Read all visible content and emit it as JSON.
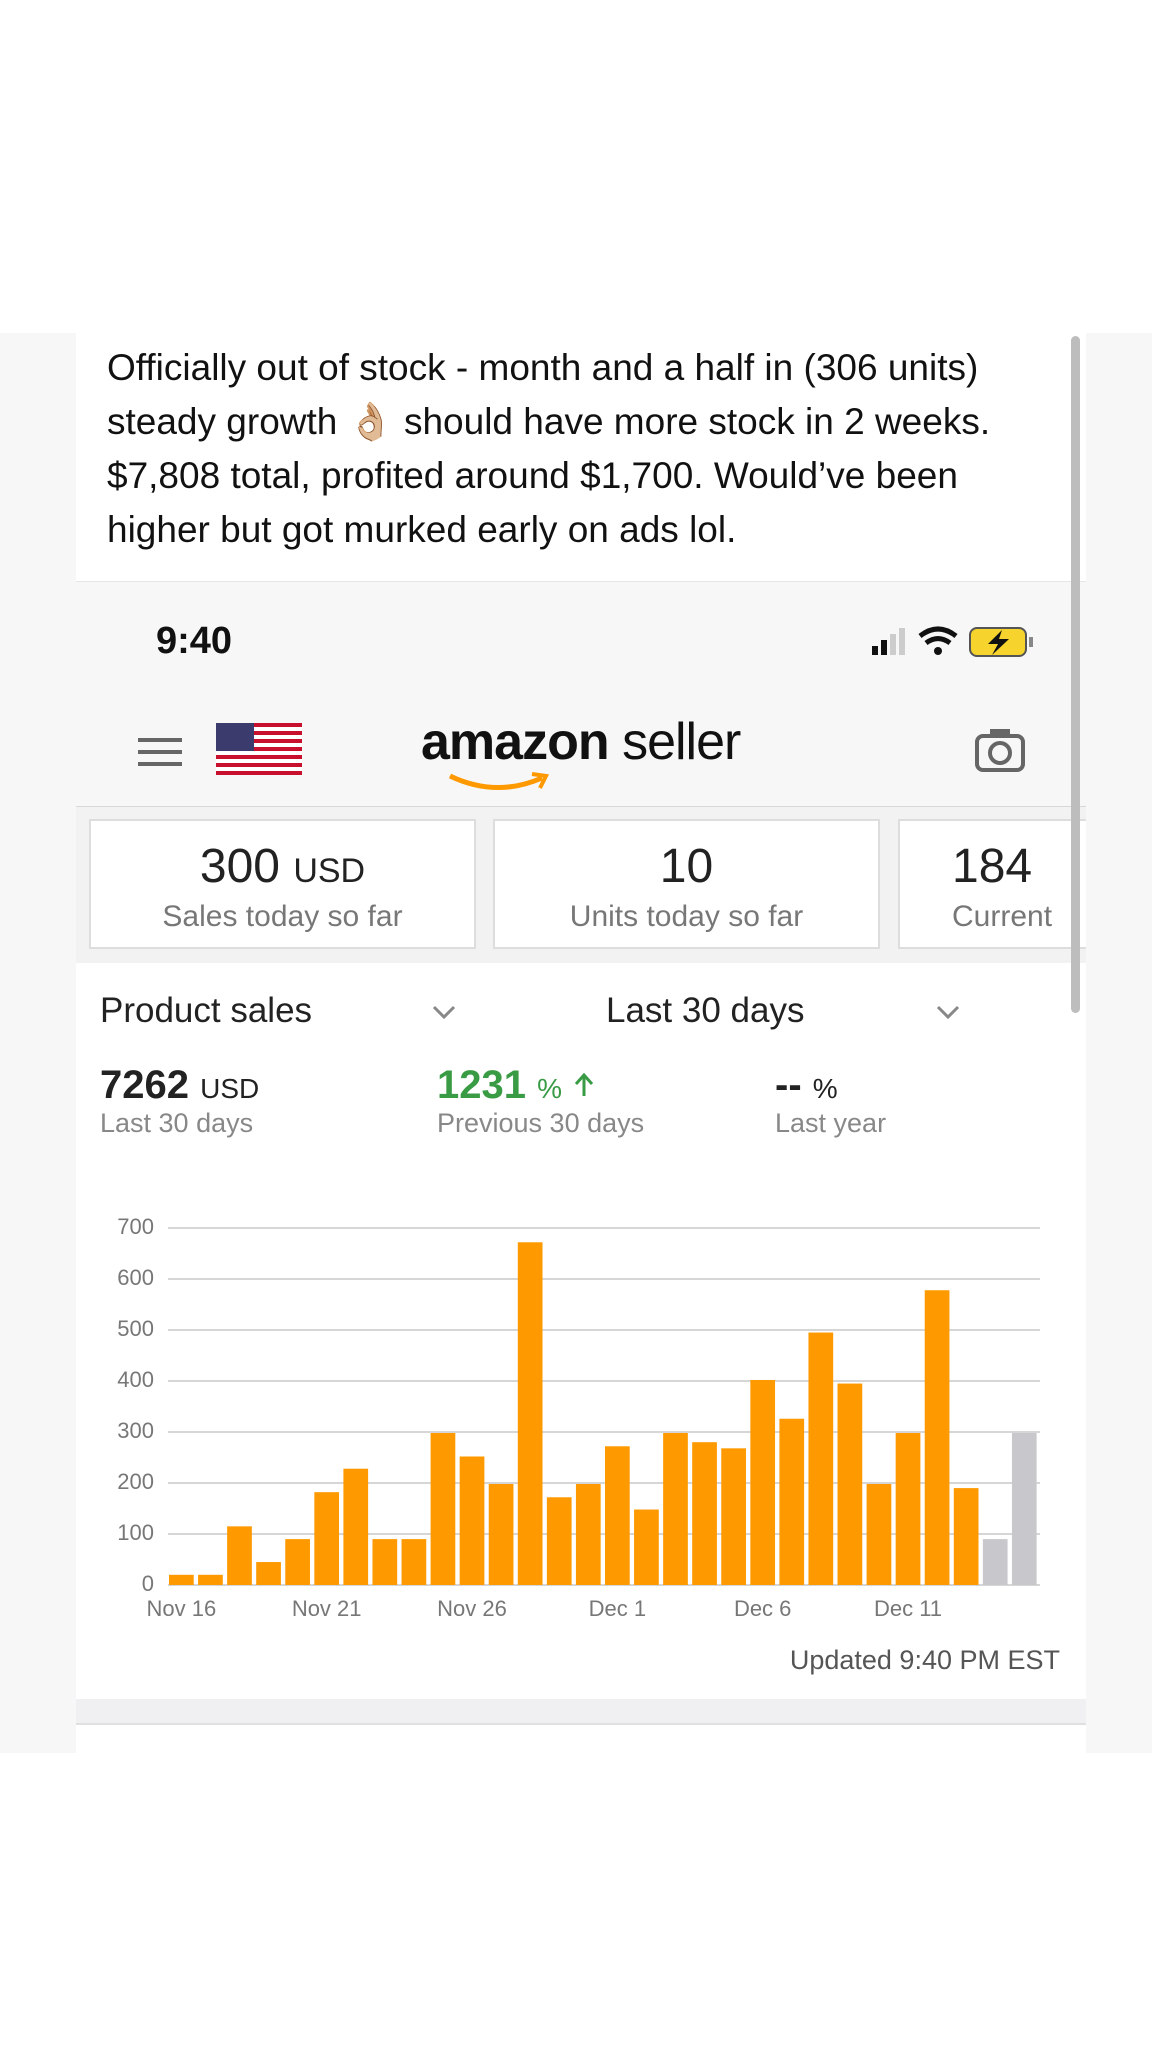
{
  "post": {
    "text": "Officially out of stock - month and a half in (306 units) steady growth 👌🏼 should have more stock in 2 weeks. $7,808 total, profited around $1,700. Would’ve been higher but got murked early on ads lol."
  },
  "status_bar": {
    "time": "9:40"
  },
  "header": {
    "logo_brand": "amazon",
    "logo_product": "seller"
  },
  "cards": [
    {
      "value": 300,
      "unit": "USD",
      "label": "Sales today so far"
    },
    {
      "value": 10,
      "label": "Units today so far"
    },
    {
      "value": 184,
      "label": "Current"
    }
  ],
  "filters": {
    "metric": "Product sales",
    "period": "Last 30 days"
  },
  "metrics": [
    {
      "value": 7262,
      "unit": "USD",
      "label": "Last 30 days"
    },
    {
      "value": 1231,
      "unit": "%",
      "label": "Previous 30 days"
    },
    {
      "value": "--",
      "unit": "%",
      "label": "Last year"
    }
  ],
  "chart_data": {
    "type": "bar",
    "categories": [
      "Nov 16",
      null,
      null,
      null,
      null,
      "Nov 21",
      null,
      null,
      null,
      null,
      "Nov 26",
      null,
      null,
      null,
      null,
      "Dec 1",
      null,
      null,
      null,
      null,
      "Dec 6",
      null,
      null,
      null,
      null,
      "Dec 11",
      null,
      null,
      null,
      null
    ],
    "values": [
      20,
      20,
      115,
      45,
      90,
      182,
      228,
      90,
      90,
      298,
      252,
      198,
      672,
      172,
      198,
      272,
      148,
      298,
      280,
      268,
      402,
      326,
      495,
      395,
      198,
      298,
      578,
      190,
      90,
      298
    ],
    "colors": [
      "#ff9900",
      "#ff9900",
      "#ff9900",
      "#ff9900",
      "#ff9900",
      "#ff9900",
      "#ff9900",
      "#ff9900",
      "#ff9900",
      "#ff9900",
      "#ff9900",
      "#ff9900",
      "#ff9900",
      "#ff9900",
      "#ff9900",
      "#ff9900",
      "#ff9900",
      "#ff9900",
      "#ff9900",
      "#ff9900",
      "#ff9900",
      "#ff9900",
      "#ff9900",
      "#ff9900",
      "#ff9900",
      "#ff9900",
      "#ff9900",
      "#ff9900",
      "#c8c8cc",
      "#c8c8cc"
    ],
    "ylim": [
      0,
      700
    ],
    "yticks": [
      0,
      100,
      200,
      300,
      400,
      500,
      600,
      700
    ],
    "grid": true
  },
  "footer": {
    "updated": "Updated 9:40 PM EST"
  }
}
